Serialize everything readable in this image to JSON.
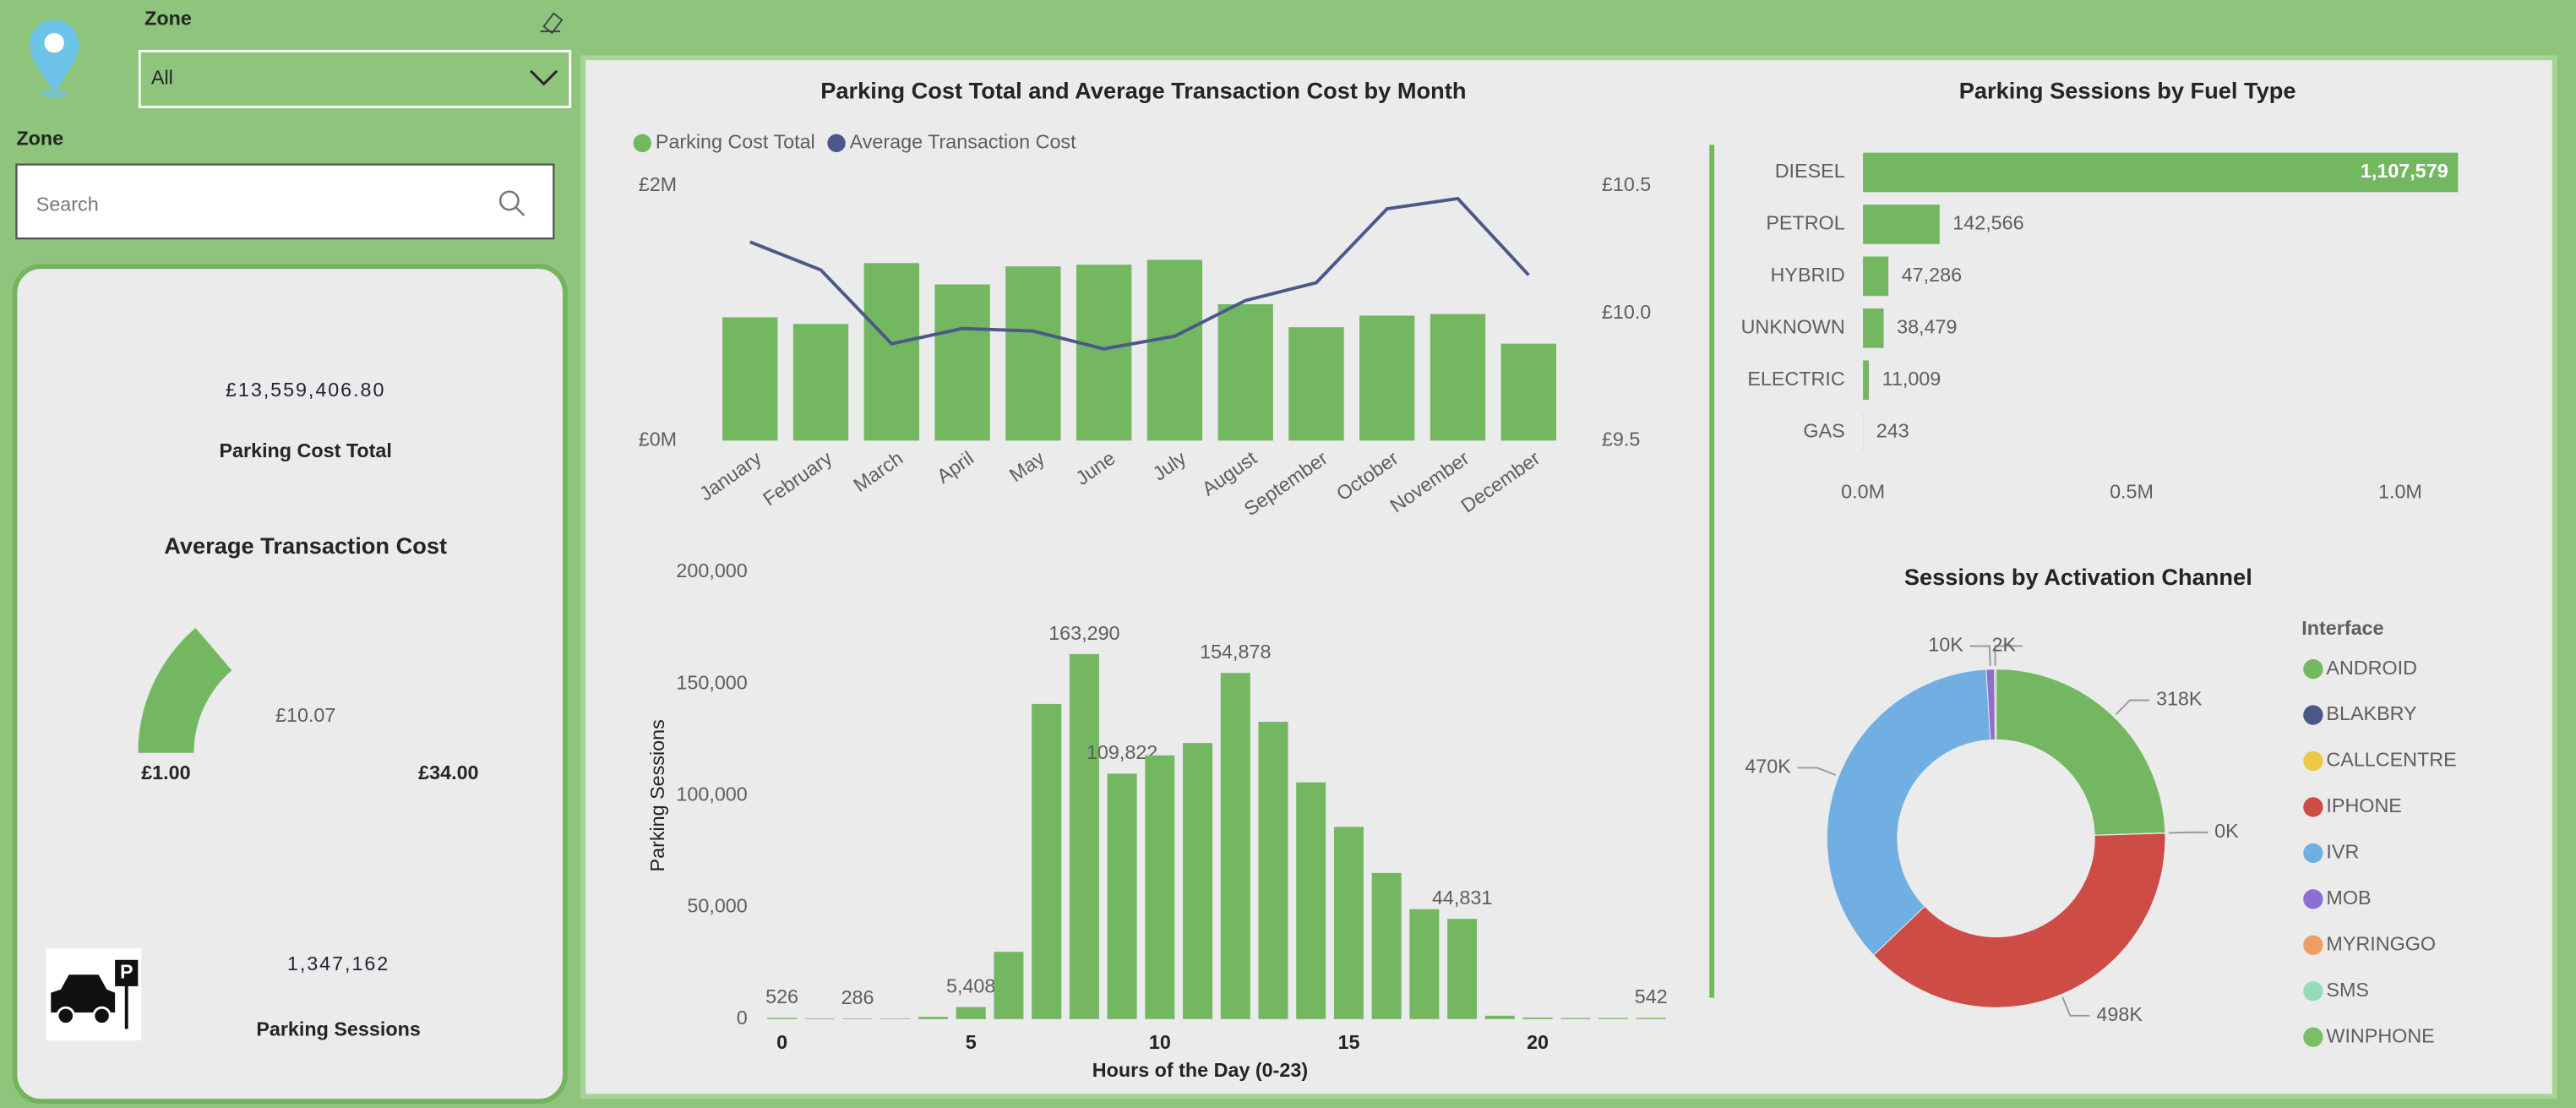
{
  "filters": {
    "zone_dropdown": {
      "label": "Zone",
      "selected": "All"
    },
    "zone_search": {
      "label": "Zone",
      "placeholder": "Search"
    }
  },
  "cards": {
    "parking_cost_total": {
      "value": "£13,559,406.80",
      "label": "Parking Cost Total"
    },
    "parking_sessions": {
      "value": "1,347,162",
      "label": "Parking Sessions"
    }
  },
  "chart_data": [
    {
      "type": "combo",
      "title": "Parking Cost Total and Average Transaction Cost by Month",
      "categories": [
        "January",
        "February",
        "March",
        "April",
        "May",
        "June",
        "July",
        "August",
        "September",
        "October",
        "November",
        "December"
      ],
      "series": [
        {
          "name": "Parking Cost Total",
          "type": "bar",
          "color": "#73b761",
          "values": [
            968000,
            916000,
            1394000,
            1226000,
            1368000,
            1381000,
            1419000,
            1071000,
            890000,
            981000,
            994000,
            761000
          ]
        },
        {
          "name": "Average Transaction Cost",
          "type": "line",
          "axis": "y2",
          "color": "#4a588a",
          "values": [
            10.28,
            10.17,
            9.88,
            9.94,
            9.93,
            9.86,
            9.91,
            10.05,
            10.12,
            10.41,
            10.45,
            10.15
          ]
        }
      ],
      "ylim": [
        0,
        2000000
      ],
      "yticks": [
        {
          "value": 0,
          "label": "£0M"
        },
        {
          "value": 2000000,
          "label": "£2M"
        }
      ],
      "y2lim": [
        9.5,
        10.5
      ],
      "y2ticks": [
        {
          "value": 9.5,
          "label": "£9.5"
        },
        {
          "value": 10,
          "label": "£10.0"
        },
        {
          "value": 10.5,
          "label": "£10.5"
        }
      ],
      "legend": "top-left"
    },
    {
      "type": "hbar",
      "title": "Parking Sessions by Fuel Type",
      "categories": [
        "DIESEL",
        "PETROL",
        "HYBRID",
        "UNKNOWN",
        "ELECTRIC",
        "GAS"
      ],
      "values": [
        1107579,
        142566,
        47286,
        38479,
        11009,
        243
      ],
      "value_labels": [
        "1,107,579",
        "142,566",
        "47,286",
        "38,479",
        "11,009",
        "243"
      ],
      "color": "#73b761",
      "xlim": [
        0,
        1110000
      ],
      "xticks": [
        {
          "value": 0,
          "label": "0.0M"
        },
        {
          "value": 500000,
          "label": "0.5M"
        },
        {
          "value": 1000000,
          "label": "1.0M"
        }
      ]
    },
    {
      "type": "bar",
      "x_label": "Hours of the Day (0-23)",
      "y_label": "Parking Sessions",
      "x": [
        0,
        1,
        2,
        3,
        4,
        5,
        6,
        7,
        8,
        9,
        10,
        11,
        12,
        13,
        14,
        15,
        16,
        17,
        18,
        19,
        20,
        21,
        22,
        23
      ],
      "values": [
        526,
        300,
        286,
        250,
        1000,
        5408,
        30100,
        141000,
        163290,
        109822,
        118000,
        123500,
        154878,
        133000,
        105900,
        86000,
        65400,
        49200,
        44831,
        1500,
        700,
        500,
        500,
        542
      ],
      "value_labels": [
        "526",
        null,
        "286",
        null,
        null,
        "5,408",
        null,
        null,
        "163,290",
        "109,822",
        null,
        null,
        "154,878",
        null,
        null,
        null,
        null,
        null,
        "44,831",
        null,
        null,
        null,
        null,
        "542"
      ],
      "color": "#73b761",
      "xlim": [
        -0.5,
        23.5
      ],
      "xticks": [
        0,
        5,
        10,
        15,
        20
      ],
      "ylim": [
        0,
        200000
      ],
      "yticks": [
        0,
        {
          "value": 50000,
          "label": "50,000"
        },
        {
          "value": 100000,
          "label": "100,000"
        },
        {
          "value": 150000,
          "label": "150,000"
        },
        {
          "value": 200000,
          "label": "200,000"
        }
      ]
    },
    {
      "type": "donut",
      "title": "Sessions by Activation Channel",
      "legend_title": "Interface",
      "categories": [
        "ANDROID",
        "BLAKBRY",
        "CALLCENTRE",
        "IPHONE",
        "IVR",
        "MOB",
        "MYRINGGO",
        "SMS",
        "WINPHONE"
      ],
      "values": [
        318,
        0,
        0.4,
        498,
        470,
        10,
        2,
        0,
        0
      ],
      "value_labels": [
        "318K",
        null,
        "0K",
        "498K",
        "470K",
        "10K",
        "2K",
        null,
        null
      ],
      "colors": [
        "#73b761",
        "#4a588a",
        "#ecc846",
        "#cd4c46",
        "#71afe2",
        "#8d6fd1",
        "#ee9e64",
        "#95dabb",
        "#7cbd68"
      ]
    },
    {
      "type": "gauge",
      "title": "Average Transaction Cost",
      "value": 10.07,
      "value_label": "£10.07",
      "range": [
        1,
        34
      ],
      "range_labels": [
        "£1.00",
        "£34.00"
      ],
      "color": "#73b761"
    }
  ]
}
